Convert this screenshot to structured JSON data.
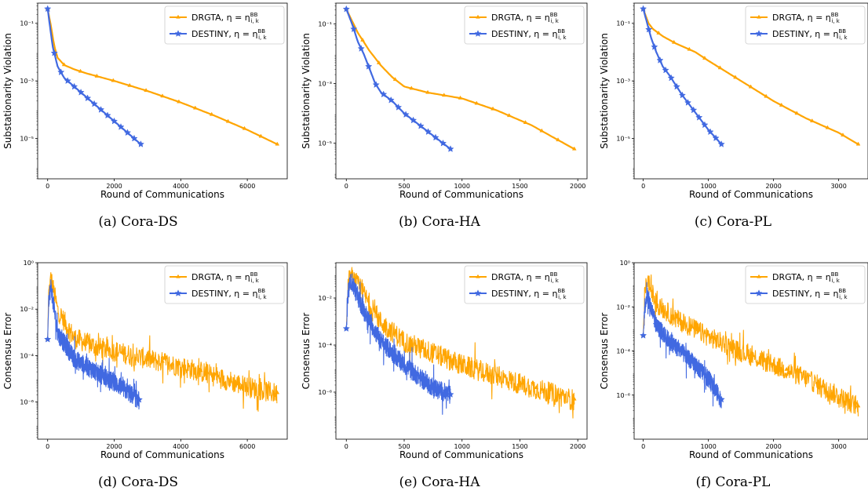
{
  "colors": {
    "drgta": "#ffa500",
    "destiny": "#4169e1"
  },
  "chart_data": [
    {
      "type": "line",
      "caption": "(a)  Cora-DS",
      "xlabel": "Round of Communications",
      "ylabel": "Substationarity Violation",
      "xlim": [
        -300,
        7200
      ],
      "ylim_log": [
        -6.4,
        -0.3
      ],
      "xticks": [
        0,
        2000,
        4000,
        6000
      ],
      "xticklabels": [
        "0",
        "2000",
        "4000",
        "6000"
      ],
      "yticks": [
        -1,
        -3,
        -5
      ],
      "yticklabels": [
        "10⁻¹",
        "10⁻³",
        "10⁻⁵"
      ],
      "legend": "top-right",
      "series": [
        {
          "name": "DRGTA, η = η",
          "name_sup": "BB",
          "name_sub": "i, k",
          "color": "drgta",
          "marker": "tri",
          "noisy": false,
          "points": [
            [
              0,
              -0.5
            ],
            [
              100,
              -1.1
            ],
            [
              200,
              -1.8
            ],
            [
              300,
              -2.2
            ],
            [
              500,
              -2.45
            ],
            [
              800,
              -2.6
            ],
            [
              1200,
              -2.75
            ],
            [
              2000,
              -3
            ],
            [
              3000,
              -3.35
            ],
            [
              4000,
              -3.75
            ],
            [
              5000,
              -4.2
            ],
            [
              6000,
              -4.7
            ],
            [
              6900,
              -5.2
            ]
          ]
        },
        {
          "name": "DESTINY, η = η",
          "name_sup": "BB",
          "name_sub": "i, k",
          "color": "destiny",
          "marker": "star",
          "noisy": false,
          "points": [
            [
              0,
              -0.5
            ],
            [
              150,
              -1.8
            ],
            [
              300,
              -2.5
            ],
            [
              500,
              -2.9
            ],
            [
              800,
              -3.2
            ],
            [
              1200,
              -3.6
            ],
            [
              1600,
              -4
            ],
            [
              2000,
              -4.4
            ],
            [
              2400,
              -4.8
            ],
            [
              2800,
              -5.2
            ]
          ]
        }
      ]
    },
    {
      "type": "line",
      "caption": "(b)  Cora-HA",
      "xlabel": "Round of Communications",
      "ylabel": "Substationarity Violation",
      "xlim": [
        -90,
        2080
      ],
      "ylim_log": [
        -6.2,
        -0.3
      ],
      "xticks": [
        0,
        500,
        1000,
        1500,
        2000
      ],
      "xticklabels": [
        "0",
        "500",
        "1000",
        "1500",
        "2000"
      ],
      "yticks": [
        -1,
        -3,
        -5
      ],
      "yticklabels": [
        "10⁻¹",
        "10⁻³",
        "10⁻⁵"
      ],
      "legend": "top-right",
      "series": [
        {
          "name": "DRGTA, η = η",
          "name_sup": "BB",
          "name_sub": "i, k",
          "color": "drgta",
          "marker": "tri",
          "noisy": false,
          "points": [
            [
              0,
              -0.5
            ],
            [
              100,
              -1.3
            ],
            [
              200,
              -1.9
            ],
            [
              300,
              -2.4
            ],
            [
              400,
              -2.8
            ],
            [
              500,
              -3.1
            ],
            [
              700,
              -3.3
            ],
            [
              1000,
              -3.5
            ],
            [
              1300,
              -3.9
            ],
            [
              1600,
              -4.4
            ],
            [
              1970,
              -5.2
            ]
          ]
        },
        {
          "name": "DESTINY, η = η",
          "name_sup": "BB",
          "name_sub": "i, k",
          "color": "destiny",
          "marker": "star",
          "noisy": false,
          "points": [
            [
              0,
              -0.5
            ],
            [
              50,
              -1
            ],
            [
              100,
              -1.6
            ],
            [
              150,
              -2
            ],
            [
              200,
              -2.5
            ],
            [
              250,
              -3
            ],
            [
              300,
              -3.3
            ],
            [
              400,
              -3.6
            ],
            [
              500,
              -4
            ],
            [
              600,
              -4.3
            ],
            [
              700,
              -4.6
            ],
            [
              800,
              -4.9
            ],
            [
              900,
              -5.2
            ]
          ]
        }
      ]
    },
    {
      "type": "line",
      "caption": "(c)  Cora-PL",
      "xlabel": "Round of Communications",
      "ylabel": "Substationarity Violation",
      "xlim": [
        -140,
        3450
      ],
      "ylim_log": [
        -6.4,
        -0.3
      ],
      "xticks": [
        0,
        1000,
        2000,
        3000
      ],
      "xticklabels": [
        "0",
        "1000",
        "2000",
        "3000"
      ],
      "yticks": [
        -1,
        -3,
        -5
      ],
      "yticklabels": [
        "10⁻¹",
        "10⁻³",
        "10⁻⁵"
      ],
      "legend": "top-right",
      "series": [
        {
          "name": "DRGTA, η = η",
          "name_sup": "BB",
          "name_sub": "i, k",
          "color": "drgta",
          "marker": "tri",
          "noisy": false,
          "points": [
            [
              0,
              -0.5
            ],
            [
              80,
              -1
            ],
            [
              150,
              -1.2
            ],
            [
              300,
              -1.45
            ],
            [
              500,
              -1.7
            ],
            [
              800,
              -2
            ],
            [
              1000,
              -2.3
            ],
            [
              1500,
              -3
            ],
            [
              2000,
              -3.7
            ],
            [
              2500,
              -4.3
            ],
            [
              3000,
              -4.8
            ],
            [
              3300,
              -5.2
            ]
          ]
        },
        {
          "name": "DESTINY, η = η",
          "name_sup": "BB",
          "name_sub": "i, k",
          "color": "destiny",
          "marker": "star",
          "noisy": false,
          "points": [
            [
              0,
              -0.5
            ],
            [
              60,
              -1
            ],
            [
              120,
              -1.5
            ],
            [
              200,
              -2
            ],
            [
              300,
              -2.5
            ],
            [
              400,
              -2.8
            ],
            [
              600,
              -3.5
            ],
            [
              800,
              -4.1
            ],
            [
              1000,
              -4.7
            ],
            [
              1200,
              -5.2
            ]
          ]
        }
      ]
    },
    {
      "type": "line",
      "caption": "(d)  Cora-DS",
      "xlabel": "Round of Communications",
      "ylabel": "Consensus Error",
      "xlim": [
        -300,
        7200
      ],
      "ylim_log": [
        -7.6,
        0
      ],
      "xticks": [
        0,
        2000,
        4000,
        6000
      ],
      "xticklabels": [
        "0",
        "2000",
        "4000",
        "6000"
      ],
      "yticks": [
        0,
        -2,
        -4,
        -6
      ],
      "yticklabels": [
        "10⁰",
        "10⁻²",
        "10⁻⁴",
        "10⁻⁶"
      ],
      "legend": "top-right",
      "series": [
        {
          "name": "DRGTA, η = η",
          "name_sup": "BB",
          "name_sub": "i, k",
          "color": "drgta",
          "marker": "tri",
          "noisy": true,
          "points": [
            [
              0,
              -3.3
            ],
            [
              30,
              -1.3
            ],
            [
              100,
              -0.6
            ],
            [
              300,
              -2
            ],
            [
              800,
              -3.2
            ],
            [
              1500,
              -3.6
            ],
            [
              3000,
              -4.1
            ],
            [
              4500,
              -4.6
            ],
            [
              6000,
              -5.3
            ],
            [
              6900,
              -5.6
            ]
          ]
        },
        {
          "name": "DESTINY, η = η",
          "name_sup": "BB",
          "name_sub": "i, k",
          "color": "destiny",
          "marker": "star",
          "noisy": true,
          "points": [
            [
              0,
              -3.3
            ],
            [
              30,
              -1.5
            ],
            [
              100,
              -1
            ],
            [
              300,
              -3
            ],
            [
              800,
              -4.1
            ],
            [
              1500,
              -4.7
            ],
            [
              2200,
              -5.3
            ],
            [
              2750,
              -5.9
            ]
          ]
        }
      ]
    },
    {
      "type": "line",
      "caption": "(e)  Cora-HA",
      "xlabel": "Round of Communications",
      "ylabel": "Consensus Error",
      "xlim": [
        -90,
        2080
      ],
      "ylim_log": [
        -8,
        -0.5
      ],
      "xticks": [
        0,
        500,
        1000,
        1500,
        2000
      ],
      "xticklabels": [
        "0",
        "500",
        "1000",
        "1500",
        "2000"
      ],
      "yticks": [
        -2,
        -4,
        -6
      ],
      "yticklabels": [
        "10⁻²",
        "10⁻⁴",
        "10⁻⁶"
      ],
      "legend": "top-right",
      "series": [
        {
          "name": "DRGTA, η = η",
          "name_sup": "BB",
          "name_sub": "i, k",
          "color": "drgta",
          "marker": "tri",
          "noisy": true,
          "points": [
            [
              0,
              -3.3
            ],
            [
              15,
              -1.5
            ],
            [
              40,
              -1
            ],
            [
              150,
              -1.8
            ],
            [
              300,
              -3
            ],
            [
              500,
              -3.8
            ],
            [
              1000,
              -4.8
            ],
            [
              1500,
              -5.6
            ],
            [
              1970,
              -6.3
            ]
          ]
        },
        {
          "name": "DESTINY, η = η",
          "name_sup": "BB",
          "name_sub": "i, k",
          "color": "destiny",
          "marker": "star",
          "noisy": true,
          "points": [
            [
              0,
              -3.3
            ],
            [
              15,
              -1.8
            ],
            [
              40,
              -1.2
            ],
            [
              150,
              -2.5
            ],
            [
              300,
              -3.8
            ],
            [
              500,
              -4.8
            ],
            [
              700,
              -5.6
            ],
            [
              900,
              -6.1
            ]
          ]
        }
      ]
    },
    {
      "type": "line",
      "caption": "(f)  Cora-PL",
      "xlabel": "Round of Communications",
      "ylabel": "Consensus Error",
      "xlim": [
        -140,
        3450
      ],
      "ylim_log": [
        -8,
        0
      ],
      "xticks": [
        0,
        1000,
        2000,
        3000
      ],
      "xticklabels": [
        "0",
        "1000",
        "2000",
        "3000"
      ],
      "yticks": [
        0,
        -2,
        -4,
        -6
      ],
      "yticklabels": [
        "10⁰",
        "10⁻²",
        "10⁻⁴",
        "10⁻⁶"
      ],
      "legend": "top-right",
      "series": [
        {
          "name": "DRGTA, η = η",
          "name_sup": "BB",
          "name_sub": "i, k",
          "color": "drgta",
          "marker": "tri",
          "noisy": true,
          "points": [
            [
              0,
              -3.3
            ],
            [
              20,
              -1.5
            ],
            [
              60,
              -0.7
            ],
            [
              200,
              -1.8
            ],
            [
              500,
              -2.5
            ],
            [
              1000,
              -3.3
            ],
            [
              1500,
              -4
            ],
            [
              2000,
              -4.6
            ],
            [
              2500,
              -5.2
            ],
            [
              3000,
              -6
            ],
            [
              3300,
              -6.5
            ]
          ]
        },
        {
          "name": "DESTINY, η = η",
          "name_sup": "BB",
          "name_sub": "i, k",
          "color": "destiny",
          "marker": "star",
          "noisy": true,
          "points": [
            [
              0,
              -3.3
            ],
            [
              20,
              -2
            ],
            [
              60,
              -1.4
            ],
            [
              200,
              -2.8
            ],
            [
              400,
              -3.5
            ],
            [
              700,
              -4.3
            ],
            [
              1000,
              -5.2
            ],
            [
              1200,
              -6.2
            ]
          ]
        }
      ]
    }
  ]
}
